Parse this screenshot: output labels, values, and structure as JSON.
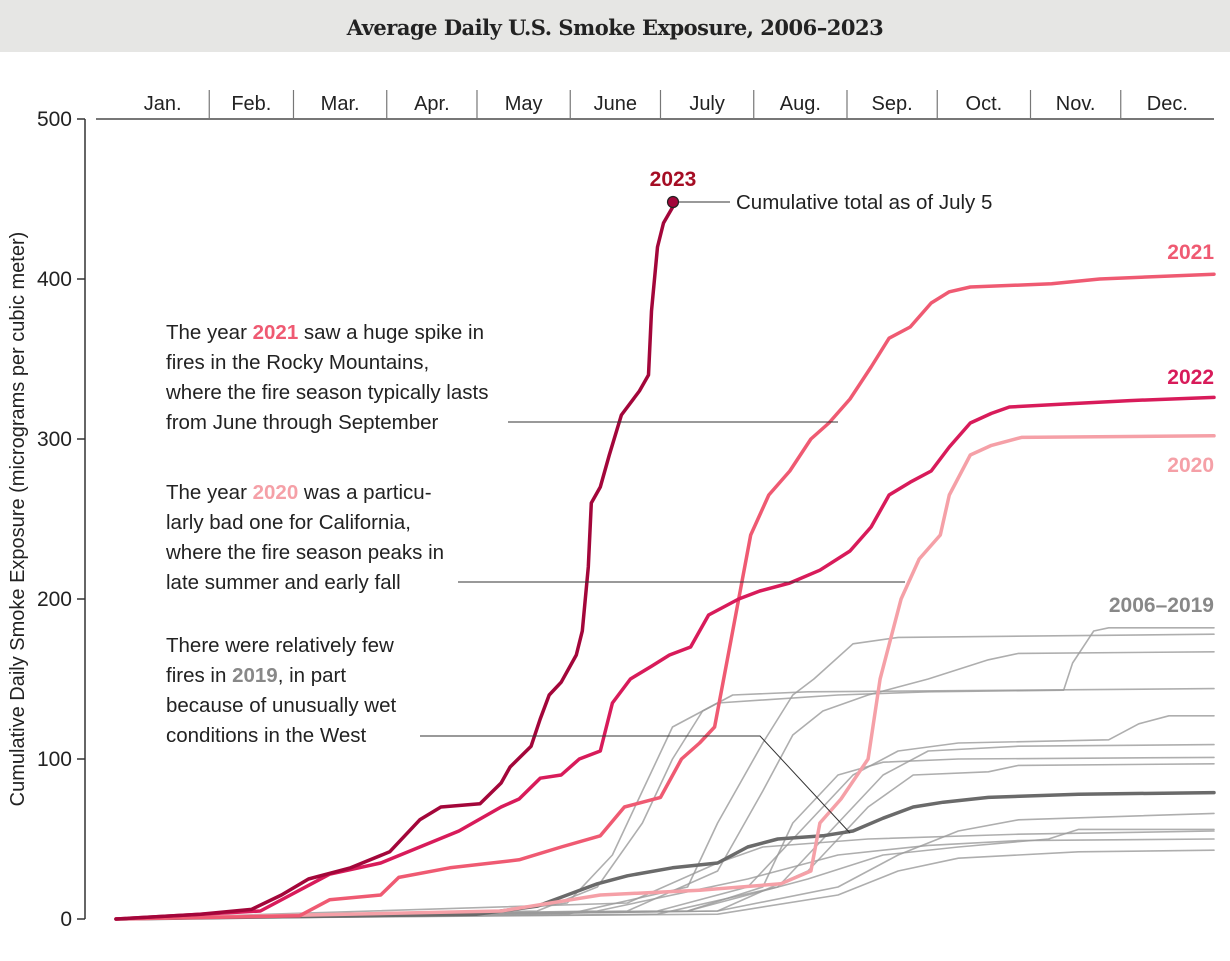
{
  "chart_data": {
    "type": "line",
    "title": "Average Daily U.S. Smoke Exposure, 2006–2023",
    "ylabel": "Cumulative Daily Smoke Exposure (micrograms per cubic meter)",
    "xlabel": "",
    "ylim": [
      0,
      500
    ],
    "yticks": [
      "0",
      "100",
      "200",
      "300",
      "400",
      "500"
    ],
    "months": [
      "Jan.",
      "Feb.",
      "Mar.",
      "Apr.",
      "May",
      "June",
      "July",
      "Aug.",
      "Sep.",
      "Oct.",
      "Nov.",
      "Dec."
    ],
    "x_unit": "day of year",
    "grid": false,
    "colors": {
      "2023": "#a3063a",
      "2022": "#d81b5a",
      "2021": "#ef5a72",
      "2020": "#f5a0a7",
      "gray": "#9a9a9a",
      "2019": "#6a6a6a"
    },
    "series": [
      {
        "name": "2006–2019",
        "group": "gray",
        "points": [
          [
            0,
            0
          ],
          [
            120,
            3
          ],
          [
            150,
            10
          ],
          [
            165,
            40
          ],
          [
            175,
            80
          ],
          [
            185,
            120
          ],
          [
            200,
            135
          ],
          [
            240,
            140
          ],
          [
            270,
            142
          ],
          [
            315,
            143
          ],
          [
            318,
            160
          ],
          [
            325,
            180
          ],
          [
            330,
            182
          ],
          [
            365,
            182
          ]
        ]
      },
      {
        "name": "2006–2019",
        "group": "gray",
        "points": [
          [
            0,
            0
          ],
          [
            150,
            3
          ],
          [
            190,
            20
          ],
          [
            200,
            60
          ],
          [
            215,
            110
          ],
          [
            225,
            140
          ],
          [
            232,
            150
          ],
          [
            245,
            172
          ],
          [
            260,
            176
          ],
          [
            365,
            178
          ]
        ]
      },
      {
        "name": "2006–2019",
        "group": "gray",
        "points": [
          [
            0,
            0
          ],
          [
            170,
            5
          ],
          [
            200,
            30
          ],
          [
            215,
            80
          ],
          [
            225,
            115
          ],
          [
            235,
            130
          ],
          [
            250,
            140
          ],
          [
            270,
            150
          ],
          [
            290,
            162
          ],
          [
            300,
            166
          ],
          [
            365,
            167
          ]
        ]
      },
      {
        "name": "2006–2019",
        "group": "gray",
        "points": [
          [
            0,
            0
          ],
          [
            140,
            5
          ],
          [
            160,
            20
          ],
          [
            175,
            60
          ],
          [
            185,
            100
          ],
          [
            195,
            130
          ],
          [
            205,
            140
          ],
          [
            230,
            142
          ],
          [
            365,
            144
          ]
        ]
      },
      {
        "name": "2006–2019",
        "group": "gray",
        "points": [
          [
            0,
            0
          ],
          [
            180,
            5
          ],
          [
            210,
            20
          ],
          [
            230,
            60
          ],
          [
            245,
            90
          ],
          [
            260,
            105
          ],
          [
            280,
            110
          ],
          [
            330,
            112
          ],
          [
            340,
            122
          ],
          [
            350,
            127
          ],
          [
            365,
            127
          ]
        ]
      },
      {
        "name": "2006–2019",
        "group": "gray",
        "points": [
          [
            0,
            0
          ],
          [
            180,
            3
          ],
          [
            220,
            20
          ],
          [
            240,
            60
          ],
          [
            255,
            90
          ],
          [
            270,
            105
          ],
          [
            300,
            108
          ],
          [
            365,
            109
          ]
        ]
      },
      {
        "name": "2006–2019",
        "group": "gray",
        "points": [
          [
            0,
            0
          ],
          [
            190,
            5
          ],
          [
            215,
            20
          ],
          [
            225,
            60
          ],
          [
            240,
            90
          ],
          [
            255,
            98
          ],
          [
            280,
            100
          ],
          [
            365,
            101
          ]
        ]
      },
      {
        "name": "2006–2019",
        "group": "gray",
        "points": [
          [
            0,
            0
          ],
          [
            200,
            5
          ],
          [
            230,
            30
          ],
          [
            250,
            70
          ],
          [
            265,
            90
          ],
          [
            290,
            92
          ],
          [
            300,
            96
          ],
          [
            365,
            97
          ]
        ]
      },
      {
        "name": "2006–2019",
        "group": "gray",
        "points": [
          [
            0,
            0
          ],
          [
            200,
            5
          ],
          [
            240,
            20
          ],
          [
            260,
            40
          ],
          [
            280,
            55
          ],
          [
            300,
            62
          ],
          [
            365,
            66
          ]
        ]
      },
      {
        "name": "2006–2019",
        "group": "gray",
        "points": [
          [
            0,
            0
          ],
          [
            190,
            5
          ],
          [
            230,
            25
          ],
          [
            255,
            40
          ],
          [
            280,
            45
          ],
          [
            310,
            50
          ],
          [
            320,
            56
          ],
          [
            365,
            56
          ]
        ]
      },
      {
        "name": "2006–2019",
        "group": "gray",
        "points": [
          [
            0,
            0
          ],
          [
            170,
            10
          ],
          [
            200,
            35
          ],
          [
            215,
            45
          ],
          [
            250,
            50
          ],
          [
            300,
            53
          ],
          [
            365,
            55
          ]
        ]
      },
      {
        "name": "2006–2019",
        "group": "gray",
        "points": [
          [
            0,
            0
          ],
          [
            160,
            5
          ],
          [
            210,
            25
          ],
          [
            240,
            40
          ],
          [
            270,
            46
          ],
          [
            300,
            49
          ],
          [
            365,
            50
          ]
        ]
      },
      {
        "name": "2006–2019",
        "group": "gray",
        "points": [
          [
            0,
            0
          ],
          [
            200,
            3
          ],
          [
            240,
            15
          ],
          [
            260,
            30
          ],
          [
            280,
            38
          ],
          [
            320,
            42
          ],
          [
            365,
            43
          ]
        ]
      },
      {
        "name": "2019",
        "group": "2019",
        "points": [
          [
            0,
            0
          ],
          [
            120,
            3
          ],
          [
            140,
            8
          ],
          [
            150,
            15
          ],
          [
            160,
            22
          ],
          [
            170,
            27
          ],
          [
            185,
            32
          ],
          [
            200,
            35
          ],
          [
            210,
            45
          ],
          [
            220,
            50
          ],
          [
            235,
            52
          ],
          [
            245,
            55
          ],
          [
            255,
            63
          ],
          [
            265,
            70
          ],
          [
            275,
            73
          ],
          [
            290,
            76
          ],
          [
            320,
            78
          ],
          [
            365,
            79
          ]
        ]
      },
      {
        "name": "2020",
        "group": "2020",
        "points": [
          [
            0,
            0
          ],
          [
            128,
            5
          ],
          [
            161,
            15
          ],
          [
            194,
            18
          ],
          [
            221,
            22
          ],
          [
            231,
            30
          ],
          [
            234,
            60
          ],
          [
            241,
            75
          ],
          [
            250,
            100
          ],
          [
            254,
            150
          ],
          [
            261,
            200
          ],
          [
            267,
            225
          ],
          [
            274,
            240
          ],
          [
            277,
            265
          ],
          [
            284,
            290
          ],
          [
            291,
            296
          ],
          [
            301,
            301
          ],
          [
            365,
            302
          ]
        ]
      },
      {
        "name": "2021",
        "group": "2021",
        "points": [
          [
            0,
            0
          ],
          [
            61,
            2
          ],
          [
            71,
            12
          ],
          [
            88,
            15
          ],
          [
            94,
            26
          ],
          [
            111,
            32
          ],
          [
            134,
            37
          ],
          [
            148,
            45
          ],
          [
            161,
            52
          ],
          [
            169,
            70
          ],
          [
            181,
            76
          ],
          [
            188,
            100
          ],
          [
            194,
            110
          ],
          [
            199,
            120
          ],
          [
            204,
            170
          ],
          [
            211,
            240
          ],
          [
            217,
            265
          ],
          [
            224,
            280
          ],
          [
            231,
            300
          ],
          [
            237,
            310
          ],
          [
            244,
            325
          ],
          [
            251,
            345
          ],
          [
            257,
            363
          ],
          [
            264,
            370
          ],
          [
            271,
            385
          ],
          [
            277,
            392
          ],
          [
            284,
            395
          ],
          [
            311,
            397
          ],
          [
            327,
            400
          ],
          [
            365,
            403
          ]
        ]
      },
      {
        "name": "2022",
        "group": "2022",
        "points": [
          [
            0,
            0
          ],
          [
            48,
            5
          ],
          [
            58,
            15
          ],
          [
            71,
            28
          ],
          [
            88,
            35
          ],
          [
            101,
            45
          ],
          [
            114,
            55
          ],
          [
            128,
            70
          ],
          [
            134,
            75
          ],
          [
            141,
            88
          ],
          [
            148,
            90
          ],
          [
            154,
            100
          ],
          [
            161,
            105
          ],
          [
            165,
            135
          ],
          [
            171,
            150
          ],
          [
            178,
            158
          ],
          [
            184,
            165
          ],
          [
            191,
            170
          ],
          [
            197,
            190
          ],
          [
            207,
            200
          ],
          [
            214,
            205
          ],
          [
            224,
            210
          ],
          [
            234,
            218
          ],
          [
            244,
            230
          ],
          [
            251,
            245
          ],
          [
            257,
            265
          ],
          [
            264,
            273
          ],
          [
            271,
            280
          ],
          [
            277,
            295
          ],
          [
            284,
            310
          ],
          [
            291,
            316
          ],
          [
            297,
            320
          ],
          [
            317,
            322
          ],
          [
            337,
            324
          ],
          [
            365,
            326
          ]
        ]
      },
      {
        "name": "2023",
        "group": "2023",
        "points": [
          [
            0,
            0
          ],
          [
            28,
            3
          ],
          [
            45,
            6
          ],
          [
            55,
            15
          ],
          [
            64,
            25
          ],
          [
            78,
            32
          ],
          [
            91,
            42
          ],
          [
            101,
            62
          ],
          [
            108,
            70
          ],
          [
            121,
            72
          ],
          [
            128,
            85
          ],
          [
            131,
            95
          ],
          [
            138,
            108
          ],
          [
            141,
            125
          ],
          [
            144,
            140
          ],
          [
            148,
            148
          ],
          [
            153,
            165
          ],
          [
            155,
            180
          ],
          [
            157,
            220
          ],
          [
            158,
            260
          ],
          [
            161,
            270
          ],
          [
            164,
            290
          ],
          [
            168,
            315
          ],
          [
            174,
            330
          ],
          [
            177,
            340
          ],
          [
            178,
            380
          ],
          [
            180,
            420
          ],
          [
            182,
            435
          ],
          [
            186,
            448
          ]
        ]
      }
    ],
    "labels": {
      "y2023": "2023",
      "y2021": "2021",
      "y2022": "2022",
      "y2020": "2020",
      "gray": "2006–2019"
    },
    "annotations": {
      "endpoint": "Cumulative total as of July 5",
      "a2021": {
        "l1a": "The year ",
        "l1y": "2021",
        "l1b": " saw a huge spike in",
        "l2": "fires in the Rocky Mountains,",
        "l3": "where the fire season typically lasts",
        "l4": "from June through September"
      },
      "a2020": {
        "l1a": "The year ",
        "l1y": "2020",
        "l1b": " was a particu-",
        "l2": "larly bad one for California,",
        "l3": "where the fire season peaks in",
        "l4": "late summer and early fall"
      },
      "a2019": {
        "l1": "There were relatively few",
        "l2a": "fires in ",
        "l2y": "2019",
        "l2b": ", in part",
        "l3": "because of unusually wet",
        "l4": "conditions in the West"
      }
    }
  }
}
